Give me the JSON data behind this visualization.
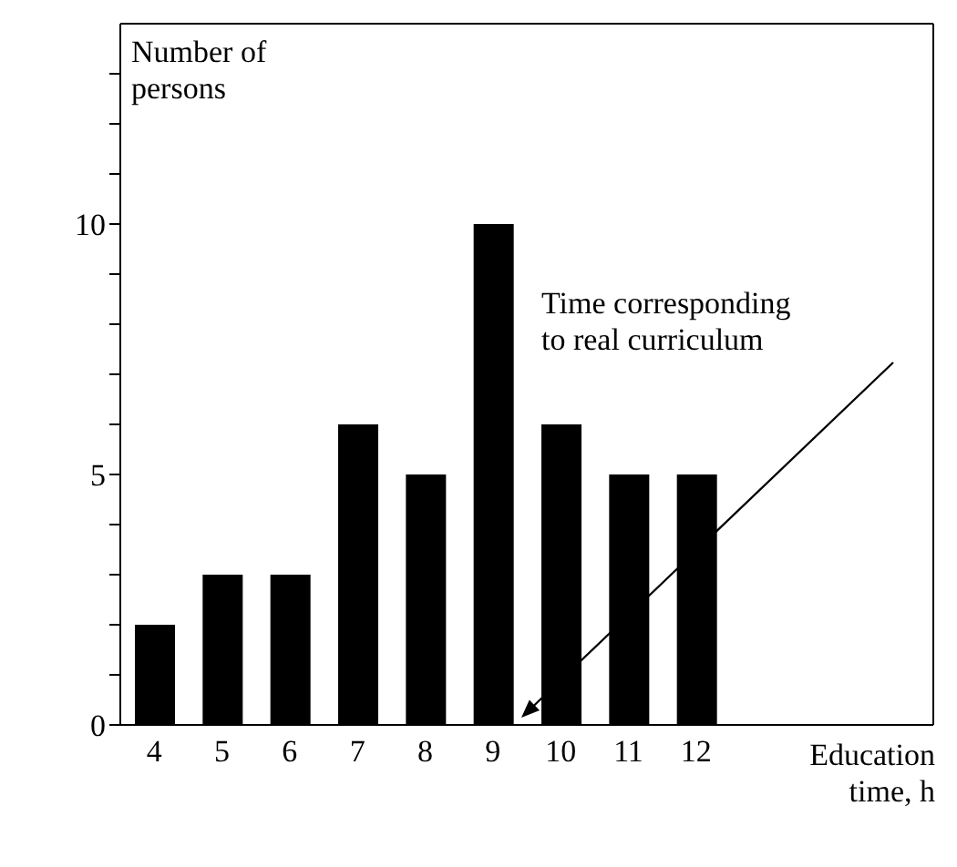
{
  "chart_data": {
    "type": "bar",
    "categories": [
      "4",
      "5",
      "6",
      "7",
      "8",
      "9",
      "10",
      "11",
      "12",
      null,
      null,
      null
    ],
    "values": [
      2,
      3,
      3,
      6,
      5,
      10,
      6,
      5,
      5,
      null,
      null,
      null
    ],
    "color": "#000000",
    "ylim": [
      0,
      14
    ],
    "yticks": [
      0,
      {
        "value": 1,
        "label": null
      },
      {
        "value": 2,
        "label": null
      },
      {
        "value": 3,
        "label": null
      },
      {
        "value": 4,
        "label": null
      },
      5,
      {
        "value": 6,
        "label": null
      },
      {
        "value": 7,
        "label": null
      },
      {
        "value": 8,
        "label": null
      },
      {
        "value": 9,
        "label": null
      },
      10,
      {
        "value": 11,
        "label": null
      },
      {
        "value": 12,
        "label": null
      },
      {
        "value": 13,
        "label": null
      }
    ],
    "xlabel": "Education time, h",
    "ylabel": "Number of persons",
    "grid": false,
    "legend": false,
    "annotations": [
      "Time corresponding to real curriculum"
    ]
  }
}
